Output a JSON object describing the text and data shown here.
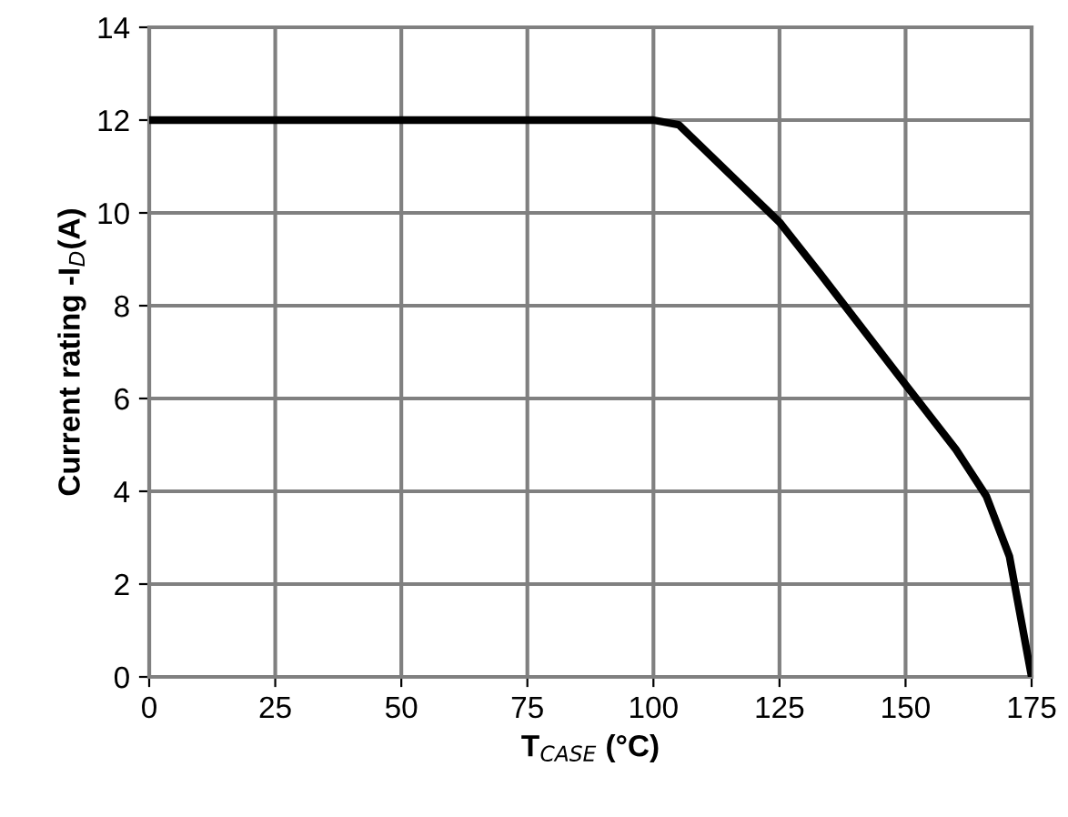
{
  "chart_data": {
    "type": "line",
    "xlabel": "T$_{CASE}$ (°C)",
    "ylabel": "Current rating -I$_{D}$(A)",
    "x": [
      0,
      100,
      105,
      125,
      133,
      150,
      160,
      166,
      170.6,
      175
    ],
    "series": [
      {
        "color": "#000000",
        "values": [
          12,
          12,
          11.9,
          9.8,
          8.7,
          6.3,
          4.9,
          3.9,
          2.6,
          0
        ]
      }
    ],
    "xlim": [
      0,
      175
    ],
    "xticks": [
      0,
      25,
      50,
      75,
      100,
      125,
      150,
      175
    ],
    "ylim": [
      0,
      14
    ],
    "yticks": [
      0,
      2,
      4,
      6,
      8,
      10,
      12,
      14
    ],
    "grid": true,
    "marker": "none",
    "line_style": "solid"
  }
}
